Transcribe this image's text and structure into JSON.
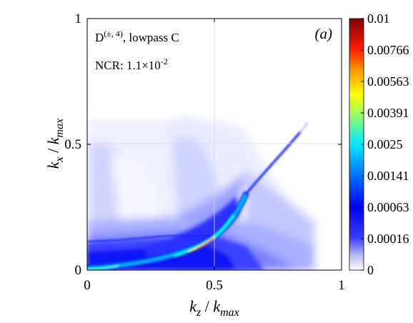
{
  "chart_data": {
    "type": "heatmap",
    "panel_label": "(a)",
    "annotation": {
      "base": "D",
      "superscript": "(±, 4)",
      "suffix": ", lowpass C"
    },
    "ncr": {
      "prefix": "NCR: ",
      "mantissa": "1.1",
      "times": "×",
      "base": "10",
      "exponent": "-2"
    },
    "xlabel": {
      "k": "k",
      "sub": "z",
      "sep": " / ",
      "k2": "k",
      "sub2": "max"
    },
    "ylabel": {
      "k": "k",
      "sub": "x",
      "sep": " / ",
      "k2": "k",
      "sub2": "max"
    },
    "xlim": [
      0,
      1
    ],
    "ylim": [
      0,
      1
    ],
    "x_ticks": [
      {
        "value": 0,
        "label": "0"
      },
      {
        "value": 0.5,
        "label": "0.5"
      },
      {
        "value": 1,
        "label": "1"
      }
    ],
    "y_ticks": [
      {
        "value": 0,
        "label": "0"
      },
      {
        "value": 0.5,
        "label": "0.5"
      },
      {
        "value": 1,
        "label": "1"
      }
    ],
    "grid": true,
    "colorbar": {
      "scale": "nonlinear",
      "ticks": [
        {
          "value": 0.01,
          "label": "0.01"
        },
        {
          "value": 0.00766,
          "label": "0.00766"
        },
        {
          "value": 0.00563,
          "label": "0.00563"
        },
        {
          "value": 0.00391,
          "label": "0.00391"
        },
        {
          "value": 0.0025,
          "label": "0.0025"
        },
        {
          "value": 0.00141,
          "label": "0.00141"
        },
        {
          "value": 0.00063,
          "label": "0.00063"
        },
        {
          "value": 0.00016,
          "label": "0.00016"
        },
        {
          "value": 0,
          "label": "0"
        }
      ],
      "colors": [
        "#7f0000",
        "#ff0000",
        "#ff8000",
        "#ffff00",
        "#80ff80",
        "#00ffff",
        "#0080ff",
        "#0000ff",
        "#0000cc",
        "#ffffff"
      ]
    }
  }
}
